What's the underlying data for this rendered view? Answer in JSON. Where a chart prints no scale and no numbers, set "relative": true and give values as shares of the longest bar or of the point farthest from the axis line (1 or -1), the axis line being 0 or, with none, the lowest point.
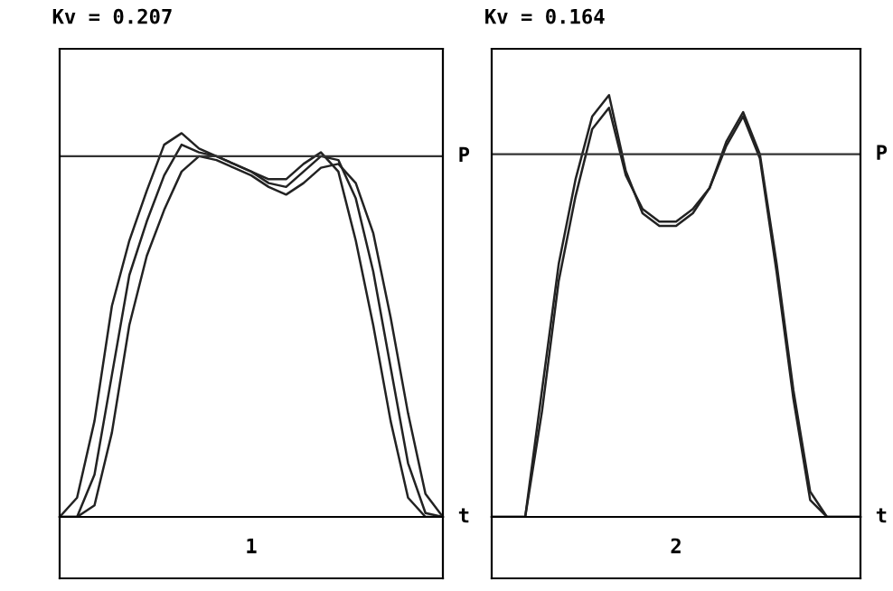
{
  "chart_data": [
    {
      "type": "line",
      "title": "Kv = 0.207",
      "xlabel": "t",
      "relative": true,
      "annotations": [
        "1"
      ],
      "categories": [
        null,
        null,
        null,
        null,
        null,
        null,
        null,
        null,
        null,
        null,
        null,
        null,
        null,
        null,
        null,
        null,
        null,
        null,
        null,
        null,
        null,
        null,
        null
      ],
      "ref_lines": [
        {
          "axis": "y",
          "value": 0.94,
          "label": "P"
        }
      ],
      "series": [
        {
          "color": "#222222",
          "values": [
            0,
            0,
            0.11,
            0.37,
            0.63,
            0.77,
            0.89,
            0.97,
            0.95,
            0.94,
            0.92,
            0.9,
            0.87,
            0.86,
            0.9,
            0.94,
            0.93,
            0.83,
            0.64,
            0.39,
            0.14,
            0.01,
            0
          ]
        },
        {
          "color": "#222222",
          "values": [
            0,
            0.05,
            0.25,
            0.55,
            0.72,
            0.85,
            0.97,
            1.0,
            0.96,
            0.94,
            0.92,
            0.9,
            0.88,
            0.88,
            0.92,
            0.95,
            0.9,
            0.72,
            0.5,
            0.25,
            0.05,
            0,
            0
          ]
        },
        {
          "color": "#222222",
          "values": [
            0,
            0,
            0.03,
            0.22,
            0.5,
            0.68,
            0.8,
            0.9,
            0.94,
            0.93,
            0.91,
            0.89,
            0.86,
            0.84,
            0.87,
            0.91,
            0.92,
            0.87,
            0.74,
            0.52,
            0.27,
            0.06,
            0
          ]
        }
      ]
    },
    {
      "type": "line",
      "title": "Kv = 0.164",
      "xlabel": "t",
      "relative": true,
      "annotations": [
        "2"
      ],
      "categories": [
        null,
        null,
        null,
        null,
        null,
        null,
        null,
        null,
        null,
        null,
        null,
        null,
        null,
        null,
        null,
        null,
        null,
        null,
        null,
        null,
        null,
        null,
        null
      ],
      "ref_lines": [
        {
          "axis": "y",
          "value": 0.86,
          "label": "P"
        }
      ],
      "series": [
        {
          "color": "#222222",
          "values": [
            0,
            0,
            0,
            0.25,
            0.56,
            0.76,
            0.92,
            0.97,
            0.81,
            0.73,
            0.7,
            0.7,
            0.73,
            0.78,
            0.88,
            0.95,
            0.85,
            0.58,
            0.28,
            0.04,
            0,
            0,
            0
          ]
        },
        {
          "color": "#222222",
          "values": [
            0,
            0,
            0,
            0.3,
            0.6,
            0.8,
            0.95,
            1.0,
            0.82,
            0.72,
            0.69,
            0.69,
            0.72,
            0.78,
            0.89,
            0.96,
            0.86,
            0.6,
            0.3,
            0.06,
            0,
            0,
            0
          ]
        }
      ]
    }
  ]
}
